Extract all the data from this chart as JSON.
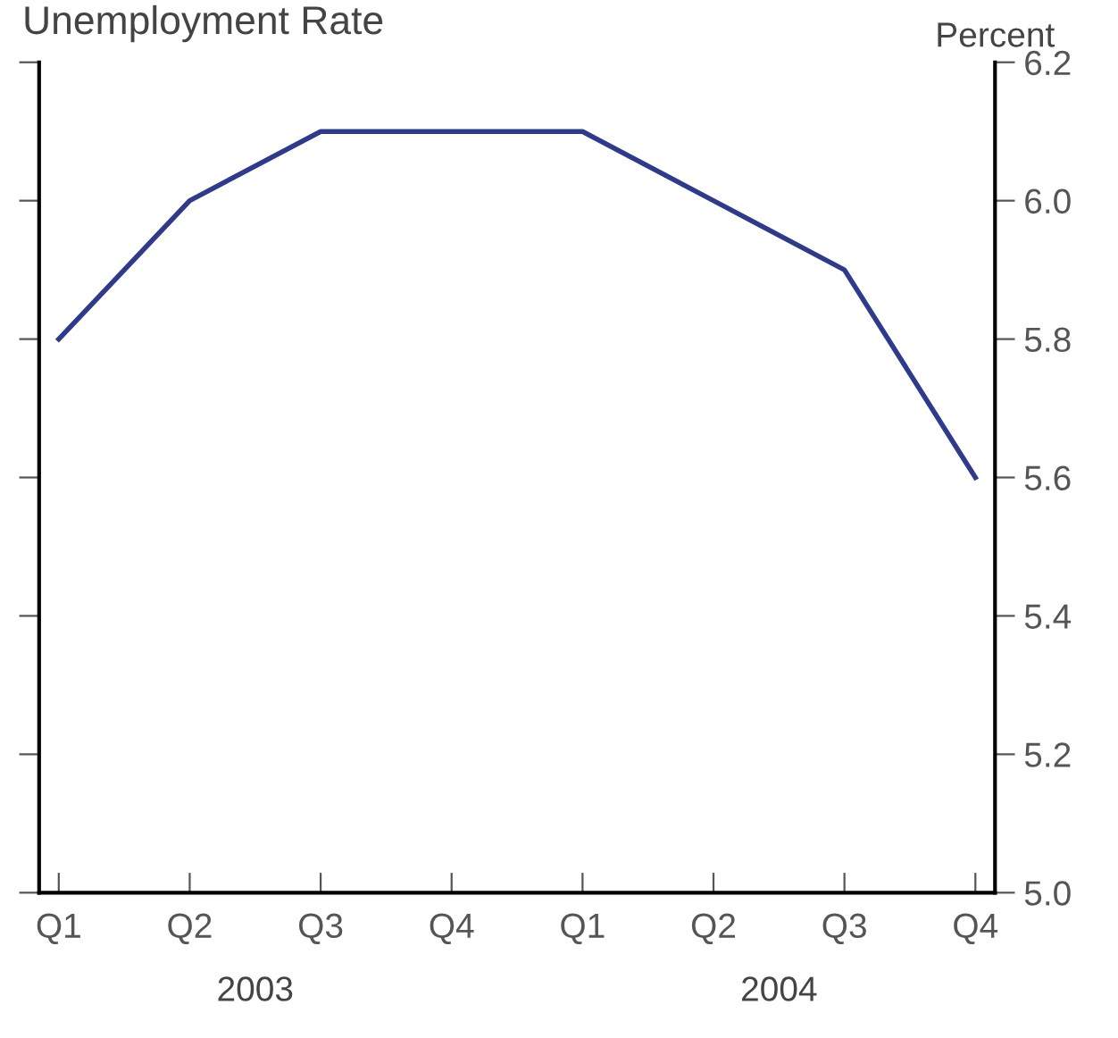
{
  "chart_data": {
    "type": "line",
    "title": "Unemployment Rate",
    "ylabel": "Percent",
    "categories": [
      "Q1",
      "Q2",
      "Q3",
      "Q4",
      "Q1",
      "Q2",
      "Q3",
      "Q4"
    ],
    "series": [
      {
        "color": "#2e3a8c",
        "values": [
          5.8,
          6.0,
          6.1,
          6.1,
          6.1,
          6.0,
          5.9,
          5.6
        ]
      }
    ],
    "ylim": [
      5.0,
      6.2
    ],
    "yticks": [
      {
        "value": 5.0,
        "label": "5.0"
      },
      5.2,
      5.4,
      5.6,
      5.8,
      {
        "value": 6.0,
        "label": "6.0"
      },
      6.2
    ],
    "annotations": [
      "2003",
      "2004"
    ],
    "grid": false,
    "marker": "none",
    "line_style": "solid"
  }
}
